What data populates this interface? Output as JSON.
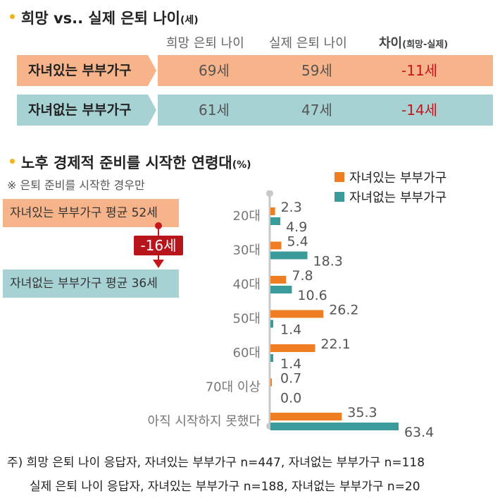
{
  "section1": {
    "title": "희망 vs.. 실제 은퇴 나이",
    "title_unit": "(세)",
    "col_hope": "희망 은퇴 나이",
    "col_actual": "실제 은퇴 나이",
    "col_diff": "차이",
    "col_diff_sub": "(희망-실제)",
    "rows": [
      {
        "label": "자녀있는 부부가구",
        "hope": "69세",
        "actual": "59세",
        "diff": "-11세"
      },
      {
        "label": "자녀없는 부부가구",
        "hope": "61세",
        "actual": "47세",
        "diff": "-14세"
      }
    ]
  },
  "section2": {
    "title": "노후 경제적 준비를 시작한 연령대",
    "title_unit": "(%)",
    "note": "※ 은퇴 준비를 시작한 경우만",
    "avg_with": "자녀있는 부부가구 평균 52세",
    "avg_without": "자녀없는 부부가구 평균 36세",
    "avg_diff": "-16세"
  },
  "colors": {
    "orange": "#ef7d22",
    "teal": "#3b9b9b",
    "orange_band": "#f7b48a",
    "teal_band": "#a7d2d4",
    "red": "#c4161c"
  },
  "chart_data": {
    "type": "bar",
    "orientation": "horizontal",
    "categories": [
      "20대",
      "30대",
      "40대",
      "50대",
      "60대",
      "70대 이상",
      "아직 시작하지 못했다"
    ],
    "series": [
      {
        "name": "자녀있는 부부가구",
        "values": [
          2.3,
          5.4,
          7.8,
          26.2,
          22.1,
          0.7,
          35.3
        ]
      },
      {
        "name": "자녀없는 부부가구",
        "values": [
          4.9,
          18.3,
          10.6,
          1.4,
          1.4,
          0.0,
          63.4
        ]
      }
    ],
    "labels": [
      [
        "2.3",
        "5.4",
        "7.8",
        "26.2",
        "22.1",
        "0.7",
        "35.3"
      ],
      [
        "4.9",
        "18.3",
        "10.6",
        "1.4",
        "1.4",
        "0.0",
        "63.4"
      ]
    ],
    "legend": "top-right",
    "grid": false
  },
  "footer": {
    "line1": "주) 희망 은퇴 나이 응답자, 자녀있는 부부가구 n=447, 자녀없는 부부가구 n=118",
    "line2": "실제 은퇴 나이 응답자, 자녀있는 부부가구 n=188, 자녀없는 부부가구 n=20"
  }
}
